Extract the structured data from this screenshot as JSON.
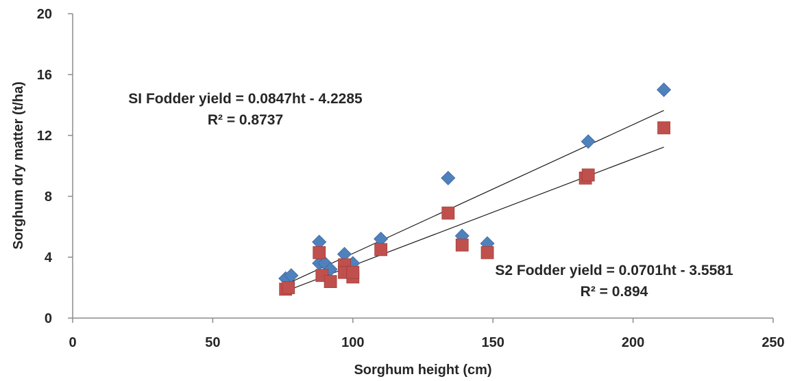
{
  "chart_data": {
    "type": "scatter",
    "xlabel": "Sorghum height (cm)",
    "ylabel": "Sorghum dry matter (t/ha)",
    "xlim": [
      0,
      250
    ],
    "ylim": [
      0,
      20
    ],
    "xticks": [
      "0",
      "50",
      "100",
      "150",
      "200",
      "250"
    ],
    "yticks": [
      "0",
      "4",
      "8",
      "12",
      "16",
      "20"
    ],
    "grid": false,
    "legend": "none",
    "series": [
      {
        "marker": "diamond",
        "color": "#4F81BD",
        "x": [
          76,
          78,
          88,
          88,
          90,
          92,
          97,
          100,
          110,
          134,
          139,
          148,
          184,
          211
        ],
        "y": [
          2.6,
          2.8,
          5.0,
          3.6,
          3.6,
          3.2,
          4.2,
          3.6,
          5.2,
          9.2,
          5.4,
          4.9,
          11.6,
          15.0
        ],
        "trendline": {
          "slope": 0.0847,
          "intercept": -4.2285,
          "x_range": [
            76,
            211
          ]
        },
        "equation_line1": "SI Fodder yield = 0.0847ht - 4.2285",
        "equation_line2": "R² = 0.8737"
      },
      {
        "marker": "square",
        "color": "#C0504D",
        "x": [
          76,
          77,
          88,
          89,
          92,
          97,
          97,
          100,
          100,
          110,
          134,
          139,
          148,
          183,
          184,
          211
        ],
        "y": [
          1.9,
          2.0,
          4.3,
          2.8,
          2.4,
          3.5,
          3.0,
          2.7,
          3.0,
          4.5,
          6.9,
          4.8,
          4.3,
          9.2,
          9.4,
          12.5
        ],
        "trendline": {
          "slope": 0.0701,
          "intercept": -3.5581,
          "x_range": [
            76,
            211
          ]
        },
        "equation_line1": "S2 Fodder yield = 0.0701ht - 3.5581",
        "equation_line2": "R² = 0.894"
      }
    ]
  }
}
